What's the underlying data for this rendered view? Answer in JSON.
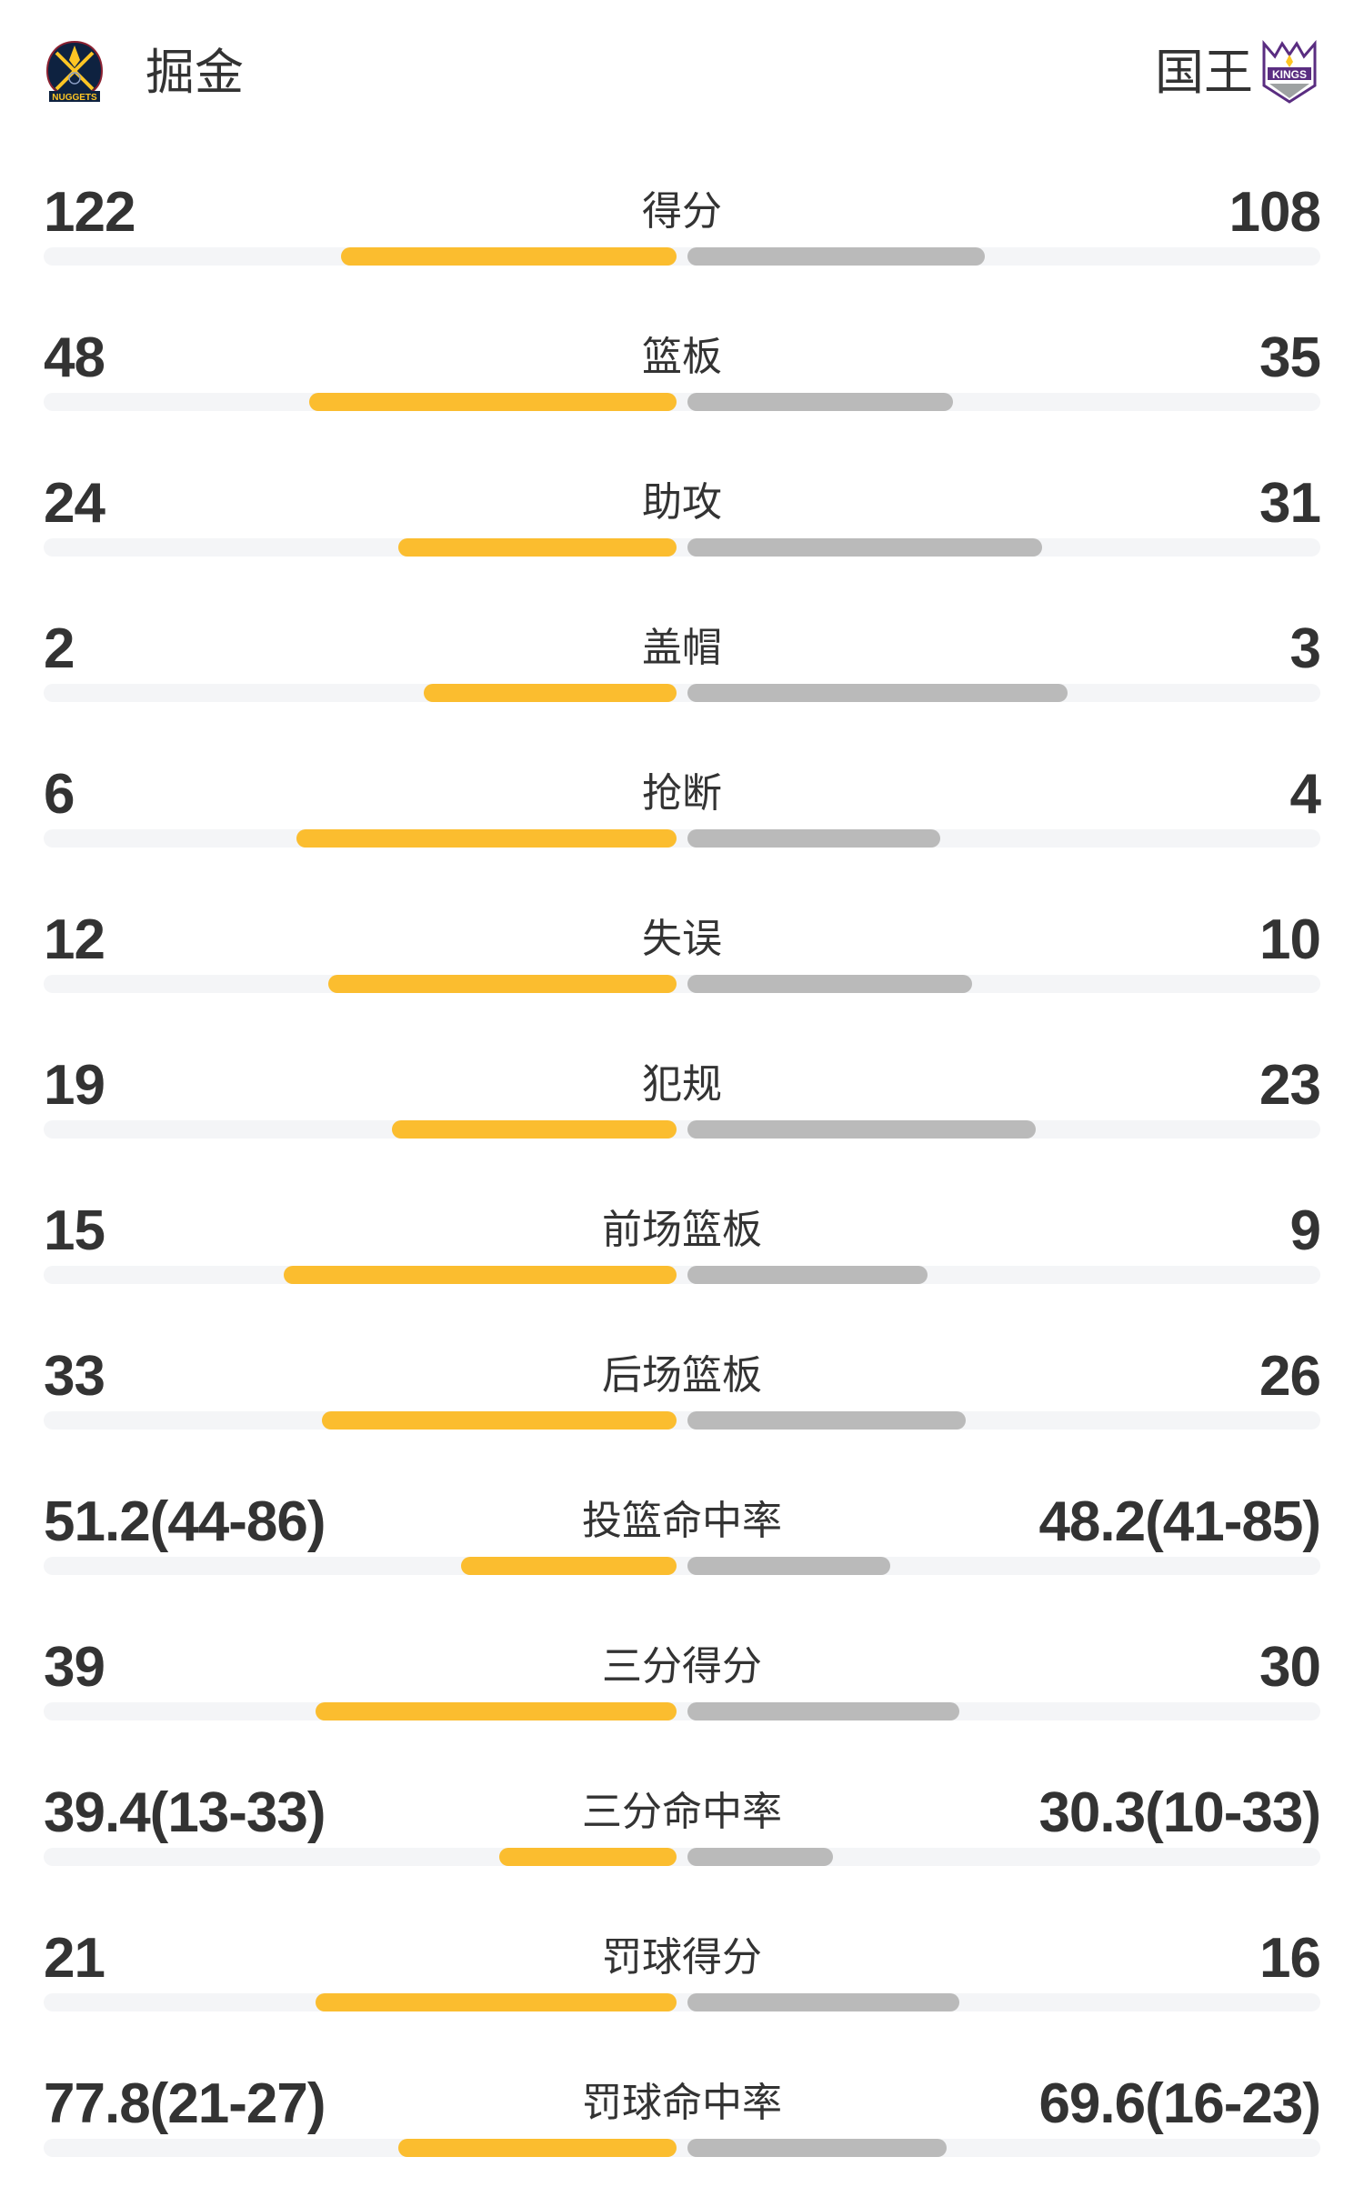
{
  "header": {
    "home_team": {
      "name": "掘金",
      "logo": "nuggets-logo",
      "logo_text": "NUGGETS"
    },
    "away_team": {
      "name": "国王",
      "logo": "kings-logo",
      "logo_text": "KINGS"
    }
  },
  "colors": {
    "home_bar": "#fbbd2f",
    "away_bar": "#bababa",
    "track": "#f4f5f7",
    "text": "#333333"
  },
  "stats": [
    {
      "label": "得分",
      "home": "122",
      "away": "108",
      "home_fill": 0.53,
      "away_fill": 0.47
    },
    {
      "label": "篮板",
      "home": "48",
      "away": "35",
      "home_fill": 0.58,
      "away_fill": 0.42
    },
    {
      "label": "助攻",
      "home": "24",
      "away": "31",
      "home_fill": 0.44,
      "away_fill": 0.56
    },
    {
      "label": "盖帽",
      "home": "2",
      "away": "3",
      "home_fill": 0.4,
      "away_fill": 0.6
    },
    {
      "label": "抢断",
      "home": "6",
      "away": "4",
      "home_fill": 0.6,
      "away_fill": 0.4
    },
    {
      "label": "失误",
      "home": "12",
      "away": "10",
      "home_fill": 0.55,
      "away_fill": 0.45
    },
    {
      "label": "犯规",
      "home": "19",
      "away": "23",
      "home_fill": 0.45,
      "away_fill": 0.55
    },
    {
      "label": "前场篮板",
      "home": "15",
      "away": "9",
      "home_fill": 0.62,
      "away_fill": 0.38
    },
    {
      "label": "后场篮板",
      "home": "33",
      "away": "26",
      "home_fill": 0.56,
      "away_fill": 0.44
    },
    {
      "label": "投篮命中率",
      "home": "51.2(44-86)",
      "away": "48.2(41-85)",
      "home_fill": 0.34,
      "away_fill": 0.32
    },
    {
      "label": "三分得分",
      "home": "39",
      "away": "30",
      "home_fill": 0.57,
      "away_fill": 0.43
    },
    {
      "label": "三分命中率",
      "home": "39.4(13-33)",
      "away": "30.3(10-33)",
      "home_fill": 0.28,
      "away_fill": 0.23
    },
    {
      "label": "罚球得分",
      "home": "21",
      "away": "16",
      "home_fill": 0.57,
      "away_fill": 0.43
    },
    {
      "label": "罚球命中率",
      "home": "77.8(21-27)",
      "away": "69.6(16-23)",
      "home_fill": 0.44,
      "away_fill": 0.41
    }
  ]
}
